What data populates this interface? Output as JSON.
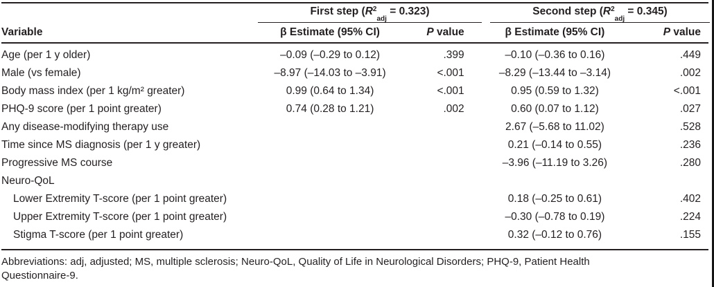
{
  "table": {
    "columns": {
      "variable_header": "Variable",
      "beta_header": "β Estimate (95% CI)",
      "p_header_italic": "P",
      "p_header_rest": " value"
    },
    "groups": [
      {
        "prefix": "First step (",
        "r": "R",
        "sup": "2",
        "sub": "adj",
        "suffix": " = 0.323)"
      },
      {
        "prefix": "Second step (",
        "r": "R",
        "sup": "2",
        "sub": "adj",
        "suffix": " = 0.345)"
      }
    ],
    "rows": [
      {
        "variable": "Age (per 1 y older)",
        "indent": false,
        "s1_beta": "–0.09 (–0.29 to 0.12)",
        "s1_p": ".399",
        "s2_beta": "–0.10 (–0.36 to 0.16)",
        "s2_p": ".449"
      },
      {
        "variable": "Male (vs female)",
        "indent": false,
        "s1_beta": "–8.97 (–14.03 to –3.91)",
        "s1_p": "<.001",
        "s2_beta": "–8.29 (–13.44 to –3.14)",
        "s2_p": ".002"
      },
      {
        "variable": "Body mass index (per 1 kg/m² greater)",
        "indent": false,
        "s1_beta": "0.99 (0.64 to 1.34)",
        "s1_p": "<.001",
        "s2_beta": "0.95 (0.59 to 1.32)",
        "s2_p": "<.001"
      },
      {
        "variable": "PHQ-9 score (per 1 point greater)",
        "indent": false,
        "s1_beta": "0.74 (0.28 to 1.21)",
        "s1_p": ".002",
        "s2_beta": "0.60 (0.07 to 1.12)",
        "s2_p": ".027"
      },
      {
        "variable": "Any disease-modifying therapy use",
        "indent": false,
        "s1_beta": "",
        "s1_p": "",
        "s2_beta": "2.67 (–5.68 to 11.02)",
        "s2_p": ".528"
      },
      {
        "variable": "Time since MS diagnosis (per 1 y greater)",
        "indent": false,
        "s1_beta": "",
        "s1_p": "",
        "s2_beta": "0.21 (–0.14 to 0.55)",
        "s2_p": ".236"
      },
      {
        "variable": "Progressive MS course",
        "indent": false,
        "s1_beta": "",
        "s1_p": "",
        "s2_beta": "–3.96 (–11.19 to 3.26)",
        "s2_p": ".280"
      },
      {
        "variable": "Neuro-QoL",
        "indent": false,
        "s1_beta": "",
        "s1_p": "",
        "s2_beta": "",
        "s2_p": ""
      },
      {
        "variable": "Lower Extremity T-score (per 1 point greater)",
        "indent": true,
        "s1_beta": "",
        "s1_p": "",
        "s2_beta": "0.18 (–0.25 to 0.61)",
        "s2_p": ".402"
      },
      {
        "variable": "Upper Extremity T-score (per 1 point greater)",
        "indent": true,
        "s1_beta": "",
        "s1_p": "",
        "s2_beta": "–0.30 (–0.78 to 0.19)",
        "s2_p": ".224"
      },
      {
        "variable": "Stigma T-score (per 1 point greater)",
        "indent": true,
        "s1_beta": "",
        "s1_p": "",
        "s2_beta": "0.32 (–0.12 to 0.76)",
        "s2_p": ".155"
      }
    ],
    "footnote_line1": "Abbreviations: adj, adjusted; MS, multiple sclerosis; Neuro-QoL, Quality of Life in Neurological Disorders; PHQ-9, Patient Health",
    "footnote_line2": "Questionnaire-9."
  },
  "colors": {
    "text": "#231f20",
    "rule": "#231f20",
    "background": "#ffffff"
  }
}
